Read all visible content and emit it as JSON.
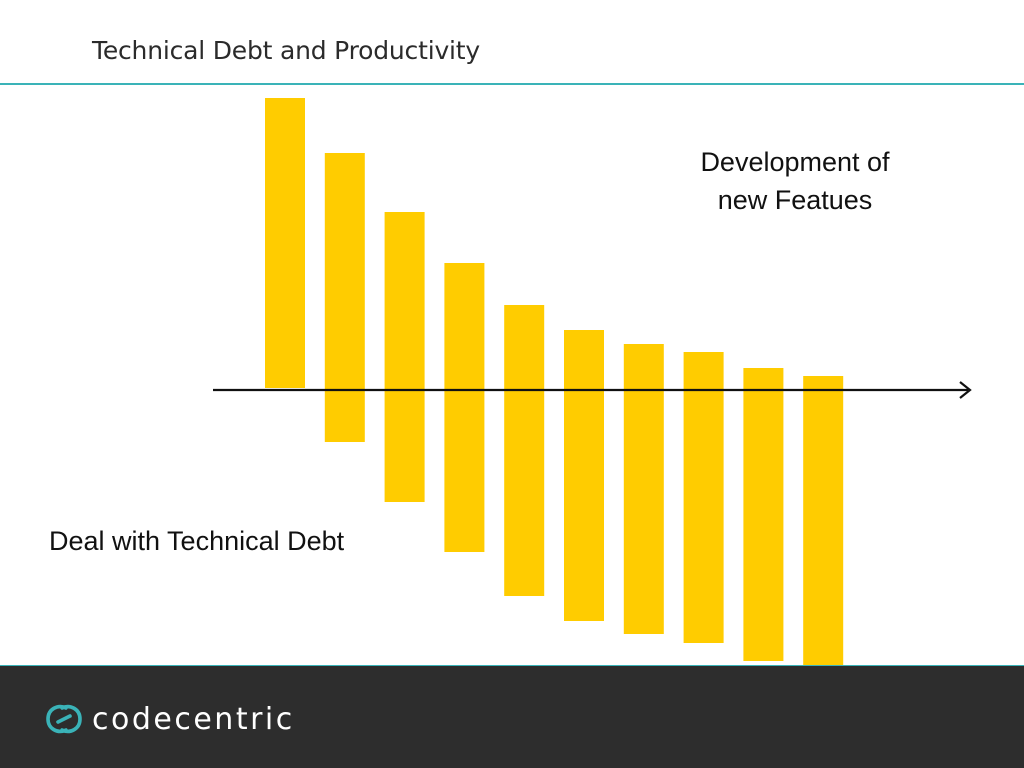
{
  "slide": {
    "title": "Technical Debt and Productivity"
  },
  "chart_data": {
    "type": "bar",
    "bars": 10,
    "series": [
      {
        "values": [
          292,
          237,
          178,
          127,
          85,
          60,
          46,
          38,
          22,
          14
        ]
      },
      {
        "values": [
          -2,
          52,
          112,
          162,
          206,
          231,
          244,
          253,
          271,
          280
        ]
      }
    ],
    "annotations": {
      "features": "Development of\nnew Featues",
      "debt": "Deal with Technical Debt"
    },
    "colors": {
      "bar": "#ffcc00",
      "axis": "#111111"
    },
    "grid": false,
    "legend": "none"
  },
  "footer": {
    "logo_text": "codecentric",
    "logo_icon": "codecentric-logo-icon",
    "colors": {
      "background": "#2d2d2d",
      "accent": "#3ab3b8"
    }
  }
}
